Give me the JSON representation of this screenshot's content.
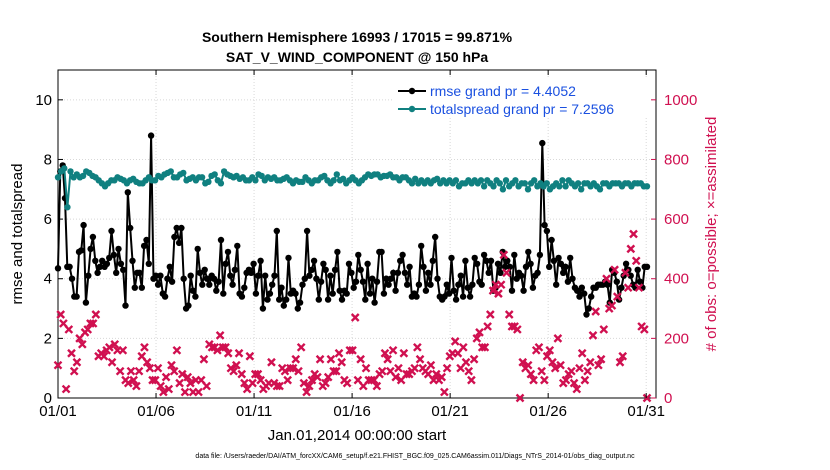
{
  "chart_data": {
    "type": "line",
    "title_line1": "Southern Hemisphere 16993 / 17015 = 99.871%",
    "title_line2": "SAT_V_WIND_COMPONENT @ 150 hPa",
    "xlabel": "Jan.01,2014 00:00:00 start",
    "ylabel_left": "rmse and totalspread",
    "ylabel_right": "# of obs: o=possible; ×=assimilated",
    "footnote": "data file: /Users/raeder/DAI/ATM_forcXX/CAM6_setup/f.e21.FHIST_BGC.f09_025.CAM6assim.011/Diags_NTrS_2014-01/obs_diag_output.nc",
    "x_ticks": [
      "01/01",
      "01/06",
      "01/11",
      "01/16",
      "01/21",
      "01/26",
      "01/31"
    ],
    "x_tick_days": [
      1,
      6,
      11,
      16,
      21,
      26,
      31
    ],
    "xlim": [
      1,
      31.5
    ],
    "ylim_left": [
      0,
      11
    ],
    "y_ticks_left": [
      "0",
      "2",
      "4",
      "6",
      "8",
      "10"
    ],
    "ylim_right": [
      0,
      1100
    ],
    "y_ticks_right": [
      "0",
      "200",
      "400",
      "600",
      "800",
      "1000"
    ],
    "grid": true,
    "legend_position": "top-right",
    "colors": {
      "rmse": "#000000",
      "spread": "#108080",
      "obs": "#d01050",
      "right_axis": "#d01050",
      "legend_text": "#1a50e0"
    },
    "series": [
      {
        "name": "rmse grand pr = 4.4052",
        "axis": "left",
        "marker": "circle",
        "values": [
          4.35,
          7.6,
          7.8,
          6.7,
          4.4,
          4.4,
          4.0,
          3.4,
          3.4,
          4.9,
          4.95,
          5.8,
          3.2,
          4.1,
          5.0,
          5.4,
          4.6,
          4.2,
          4.4,
          4.6,
          4.4,
          4.5,
          4.7,
          5.6,
          4.8,
          4.2,
          5.0,
          4.5,
          4.3,
          3.1,
          6.9,
          5.7,
          4.6,
          3.7,
          4.2,
          4.2,
          3.7,
          5.1,
          5.3,
          4.5,
          8.8,
          4.0,
          4.1,
          3.8,
          4.1,
          3.5,
          3.4,
          4.0,
          4.4,
          3.9,
          5.4,
          5.7,
          5.2,
          5.7,
          4.0,
          3.0,
          3.1,
          4.1,
          3.6,
          3.4,
          5.0,
          4.2,
          3.8,
          4.3,
          4.0,
          3.8,
          4.1,
          4.0,
          3.6,
          3.9,
          5.3,
          3.5,
          4.5,
          4.9,
          4.1,
          3.8,
          4.3,
          5.1,
          3.5,
          3.4,
          3.7,
          4.2,
          4.3,
          4.2,
          4.5,
          3.5,
          4.1,
          4.6,
          3.0,
          4.1,
          3.3,
          3.5,
          3.8,
          4.1,
          5.6,
          3.3,
          3.7,
          3.1,
          3.3,
          4.7,
          3.5,
          3.6,
          3.5,
          3.0,
          3.2,
          3.8,
          4.0,
          5.6,
          4.1,
          4.3,
          4.6,
          4.0,
          3.3,
          3.9,
          4.5,
          4.3,
          3.3,
          4.1,
          3.5,
          4.3,
          4.9,
          3.6,
          3.3,
          3.6,
          3.5,
          4.5,
          4.2,
          3.7,
          3.9,
          4.8,
          4.3,
          3.9,
          3.3,
          4.5,
          3.5,
          4.0,
          3.2,
          3.9,
          4.9,
          4.9,
          3.5,
          4.0,
          3.8,
          4.0,
          4.2,
          3.6,
          4.2,
          4.6,
          4.8,
          4.2,
          3.8,
          4.4,
          3.4,
          3.5,
          3.4,
          3.8,
          5.1,
          4.4,
          3.6,
          4.2,
          3.8,
          4.6,
          5.4,
          4.0,
          3.4,
          3.3,
          3.4,
          3.8,
          3.5,
          4.7,
          3.6,
          3.3,
          3.8,
          4.1,
          3.4,
          4.6,
          3.7,
          3.4,
          3.8,
          4.7,
          4.5,
          3.9,
          3.8,
          4.8,
          4.6,
          4.2,
          4.6,
          3.6,
          3.7,
          4.5,
          4.2,
          4.9,
          4.4,
          4.6,
          4.4,
          3.6,
          4.8,
          4.0,
          4.2,
          4.1,
          3.6,
          4.4,
          4.9,
          4.5,
          3.7,
          4.1,
          4.2,
          4.8,
          8.55,
          5.8,
          5.6,
          4.4,
          5.3,
          4.6,
          3.8,
          4.7,
          4.5,
          4.2,
          4.4,
          3.9,
          4.7,
          4.0,
          3.7,
          3.6,
          3.4,
          3.7,
          3.5,
          2.8,
          3.0,
          3.4,
          3.7,
          3.7,
          3.8,
          3.8,
          3.8,
          3.9,
          3.8,
          3.2,
          4.3,
          4.2,
          3.9,
          3.3,
          3.7,
          4.1,
          4.5,
          4.3,
          4.1,
          3.8,
          3.7,
          4.3,
          3.9,
          3.7,
          4.4,
          4.4
        ]
      },
      {
        "name": "totalspread grand pr = 7.2596",
        "axis": "left",
        "marker": "circle",
        "values": [
          7.4,
          7.6,
          7.7,
          6.4,
          7.6,
          7.4,
          7.5,
          7.4,
          7.45,
          7.6,
          7.55,
          7.45,
          7.4,
          7.3,
          7.2,
          7.1,
          7.2,
          7.3,
          7.3,
          7.4,
          7.35,
          7.3,
          7.2,
          7.3,
          7.35,
          7.25,
          7.2,
          7.2,
          7.3,
          7.4,
          7.3,
          7.3,
          7.45,
          7.4,
          7.5,
          7.55,
          7.6,
          7.4,
          7.4,
          7.5,
          7.55,
          7.3,
          7.35,
          7.4,
          7.3,
          7.4,
          7.4,
          7.2,
          7.25,
          7.45,
          7.5,
          7.3,
          7.2,
          7.6,
          7.5,
          7.45,
          7.4,
          7.45,
          7.35,
          7.4,
          7.3,
          7.3,
          7.4,
          7.3,
          7.5,
          7.45,
          7.3,
          7.4,
          7.35,
          7.4,
          7.3,
          7.3,
          7.35,
          7.4,
          7.3,
          7.2,
          7.3,
          7.25,
          7.25,
          7.4,
          7.3,
          7.2,
          7.3,
          7.3,
          7.4,
          7.45,
          7.3,
          7.2,
          7.3,
          7.5,
          7.3,
          7.35,
          7.2,
          7.3,
          7.4,
          7.3,
          7.2,
          7.3,
          7.4,
          7.5,
          7.45,
          7.5,
          7.5,
          7.4,
          7.45,
          7.45,
          7.5,
          7.4,
          7.4,
          7.3,
          7.4,
          7.4,
          7.3,
          7.2,
          7.35,
          7.2,
          7.3,
          7.2,
          7.3,
          7.2,
          7.3,
          7.35,
          7.2,
          7.3,
          7.2,
          7.3,
          7.2,
          7.3,
          7.1,
          7.2,
          7.2,
          7.3,
          7.2,
          7.3,
          7.2,
          7.3,
          7.1,
          7.3,
          7.2,
          7.1,
          7.3,
          7.2,
          7.0,
          7.3,
          7.1,
          7.2,
          7.3,
          7.1,
          7.2,
          7.2,
          7.0,
          7.2,
          7.3,
          7.1,
          7.2,
          7.1,
          7.2,
          7.0,
          7.1,
          7.2,
          7.1,
          7.3,
          7.1,
          7.3,
          7.2,
          7.1,
          7.2,
          7.0,
          7.2,
          7.2,
          7.1,
          7.2,
          7.1,
          7.0,
          7.2,
          7.2,
          7.1,
          7.2,
          7.2,
          7.2,
          7.1,
          7.2,
          7.2,
          7.1,
          7.2,
          7.2,
          7.2,
          7.1,
          7.1
        ]
      },
      {
        "name": "",
        "axis": "right",
        "marker": "cross",
        "values": [
          110,
          280,
          250,
          30,
          230,
          150,
          90,
          120,
          200,
          180,
          220,
          230,
          250,
          250,
          280,
          140,
          150,
          140,
          160,
          170,
          120,
          180,
          160,
          90,
          160,
          60,
          50,
          90,
          60,
          40,
          90,
          140,
          170,
          120,
          100,
          60,
          60,
          100,
          40,
          20,
          70,
          30,
          110,
          90,
          160,
          50,
          80,
          20,
          70,
          50,
          20,
          60,
          20,
          60,
          130,
          40,
          180,
          170,
          170,
          160,
          210,
          170,
          170,
          150,
          100,
          90,
          110,
          150,
          80,
          50,
          30,
          140,
          50,
          80,
          80,
          60,
          30,
          40,
          50,
          120,
          50,
          40,
          40,
          100,
          90,
          60,
          100,
          100,
          130,
          90,
          170,
          50,
          20,
          40,
          60,
          80,
          70,
          130,
          40,
          50,
          70,
          130,
          90,
          90,
          150,
          120,
          60,
          50,
          160,
          160,
          270,
          60,
          130,
          40,
          100,
          60,
          60,
          60,
          40,
          80,
          90,
          150,
          130,
          90,
          160,
          70,
          100,
          60,
          150,
          80,
          80,
          90,
          100,
          170,
          130,
          100,
          90,
          80,
          110,
          60,
          80,
          60,
          70,
          20,
          100,
          140,
          150,
          190,
          150,
          100,
          170,
          120,
          90,
          60,
          130,
          200,
          220,
          170,
          170,
          240,
          280,
          360,
          380,
          350,
          380,
          480,
          420,
          280,
          240,
          240,
          230,
          0,
          120,
          100,
          110,
          80,
          60,
          160,
          170,
          90,
          60,
          140,
          160,
          120,
          100,
          200,
          110,
          50,
          60,
          80,
          90,
          50,
          30,
          100,
          150,
          60,
          90,
          120,
          210,
          290,
          110,
          130,
          230,
          400,
          300,
          310,
          430,
          340,
          120,
          140,
          420,
          370,
          500,
          550,
          460,
          370,
          240,
          230,
          0
        ]
      }
    ]
  }
}
